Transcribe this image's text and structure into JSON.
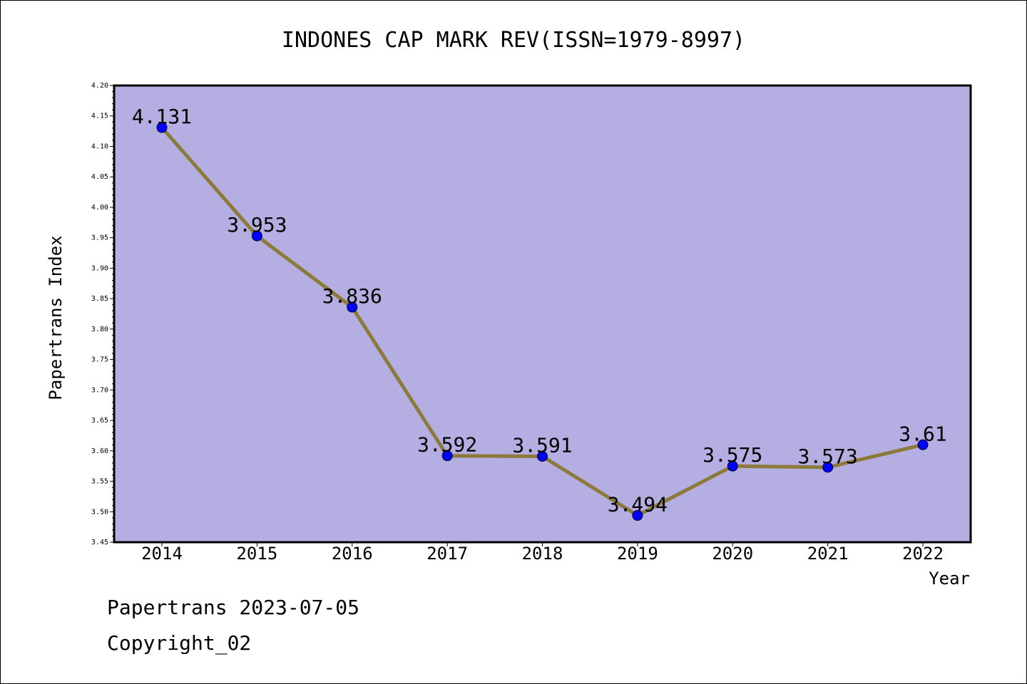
{
  "chart_data": {
    "type": "line",
    "title": "INDONES CAP MARK REV(ISSN=1979-8997)",
    "xlabel": "Year",
    "ylabel": "Papertrans Index",
    "categories": [
      "2014",
      "2015",
      "2016",
      "2017",
      "2018",
      "2019",
      "2020",
      "2021",
      "2022"
    ],
    "series": [
      {
        "values": [
          4.131,
          3.953,
          3.836,
          3.592,
          3.591,
          3.494,
          3.575,
          3.573,
          3.61
        ]
      }
    ],
    "data_labels": [
      "4.131",
      "3.953",
      "3.836",
      "3.592",
      "3.591",
      "3.494",
      "3.575",
      "3.573",
      "3.61"
    ],
    "ylim": [
      3.45,
      4.2
    ],
    "yticks": [
      "3.45",
      "3.50",
      "3.55",
      "3.60",
      "3.65",
      "3.70",
      "3.75",
      "3.80",
      "3.85",
      "3.90",
      "3.95",
      "4.00",
      "4.05",
      "4.10",
      "4.15",
      "4.20"
    ],
    "grid": false,
    "legend": "none",
    "colors": {
      "plot_background": "#b4aee2",
      "line": "#8c7a3b",
      "marker": "#0000ff",
      "axis": "#000000"
    }
  },
  "footer": {
    "date_text": "Papertrans 2023-07-05",
    "copyright_text": "Copyright_02"
  }
}
